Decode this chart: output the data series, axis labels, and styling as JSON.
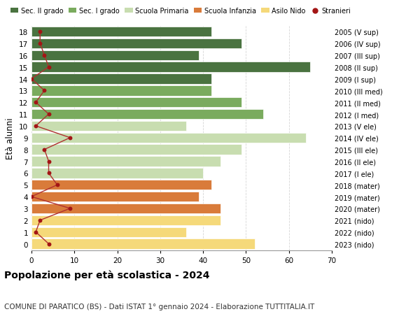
{
  "ages": [
    18,
    17,
    16,
    15,
    14,
    13,
    12,
    11,
    10,
    9,
    8,
    7,
    6,
    5,
    4,
    3,
    2,
    1,
    0
  ],
  "bar_values": [
    42,
    49,
    39,
    65,
    42,
    42,
    49,
    54,
    36,
    64,
    49,
    44,
    40,
    42,
    39,
    44,
    44,
    36,
    52
  ],
  "bar_colors": [
    "#4a7340",
    "#4a7340",
    "#4a7340",
    "#4a7340",
    "#4a7340",
    "#7aab5e",
    "#7aab5e",
    "#7aab5e",
    "#c8ddb0",
    "#c8ddb0",
    "#c8ddb0",
    "#c8ddb0",
    "#c8ddb0",
    "#d97b3a",
    "#d97b3a",
    "#d97b3a",
    "#f5d97a",
    "#f5d97a",
    "#f5d97a"
  ],
  "stranieri": [
    2,
    2,
    3,
    4,
    0,
    3,
    1,
    4,
    1,
    9,
    3,
    4,
    4,
    6,
    0,
    9,
    2,
    1,
    4
  ],
  "right_labels": [
    "2005 (V sup)",
    "2006 (IV sup)",
    "2007 (III sup)",
    "2008 (II sup)",
    "2009 (I sup)",
    "2010 (III med)",
    "2011 (II med)",
    "2012 (I med)",
    "2013 (V ele)",
    "2014 (IV ele)",
    "2015 (III ele)",
    "2016 (II ele)",
    "2017 (I ele)",
    "2018 (mater)",
    "2019 (mater)",
    "2020 (mater)",
    "2021 (nido)",
    "2022 (nido)",
    "2023 (nido)"
  ],
  "legend_labels": [
    "Sec. II grado",
    "Sec. I grado",
    "Scuola Primaria",
    "Scuola Infanzia",
    "Asilo Nido",
    "Stranieri"
  ],
  "legend_colors": [
    "#4a7340",
    "#7aab5e",
    "#c8ddb0",
    "#d97b3a",
    "#f5d97a",
    "#a31515"
  ],
  "ylabel": "Età alunni",
  "title": "Popolazione per età scolastica - 2024",
  "subtitle": "COMUNE DI PARATICO (BS) - Dati ISTAT 1° gennaio 2024 - Elaborazione TUTTITALIA.IT",
  "xlim": [
    0,
    70
  ],
  "xticks": [
    0,
    10,
    20,
    30,
    40,
    50,
    60,
    70
  ],
  "background_color": "#ffffff",
  "grid_color": "#cccccc",
  "stranieri_color": "#a31515",
  "stranieri_line_color": "#b03030"
}
